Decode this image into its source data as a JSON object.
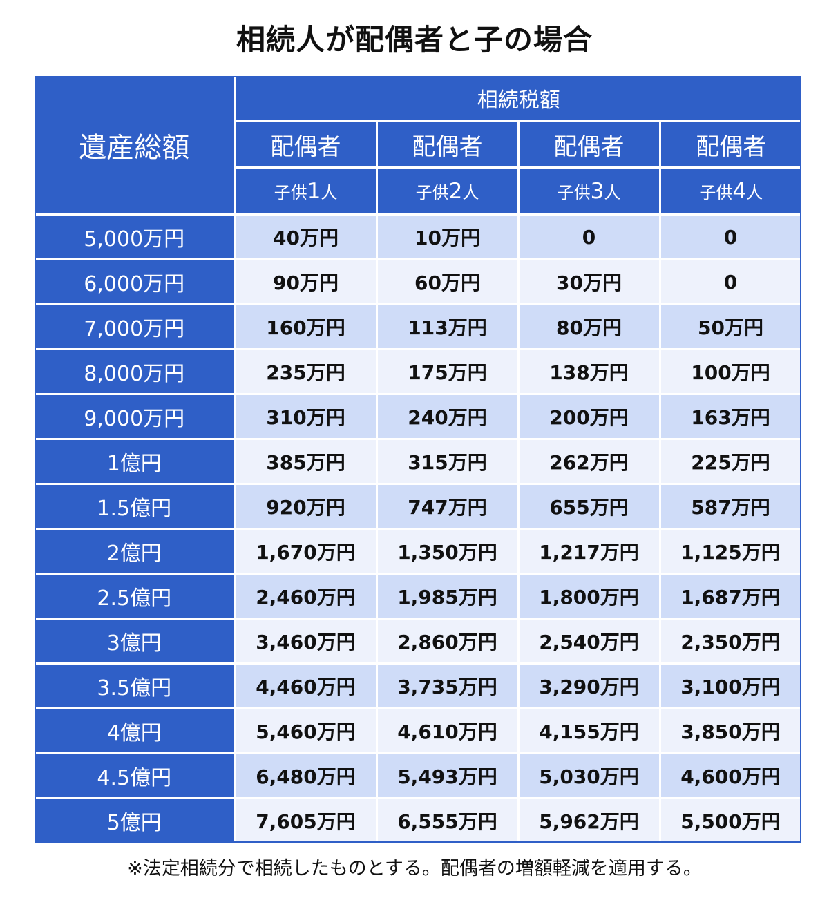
{
  "title": "相続人が配偶者と子の場合",
  "header": {
    "row_header": "遺産総額",
    "group": "相続税額",
    "columns": [
      {
        "spouse": "配偶者",
        "child_prefix": "子供",
        "child_num": "1",
        "child_suffix": "人"
      },
      {
        "spouse": "配偶者",
        "child_prefix": "子供",
        "child_num": "2",
        "child_suffix": "人"
      },
      {
        "spouse": "配偶者",
        "child_prefix": "子供",
        "child_num": "3",
        "child_suffix": "人"
      },
      {
        "spouse": "配偶者",
        "child_prefix": "子供",
        "child_num": "4",
        "child_suffix": "人"
      }
    ]
  },
  "rows": [
    {
      "estate": "5,000万円",
      "values": [
        "40万円",
        "10万円",
        "0",
        "0"
      ]
    },
    {
      "estate": "6,000万円",
      "values": [
        "90万円",
        "60万円",
        "30万円",
        "0"
      ]
    },
    {
      "estate": "7,000万円",
      "values": [
        "160万円",
        "113万円",
        "80万円",
        "50万円"
      ]
    },
    {
      "estate": "8,000万円",
      "values": [
        "235万円",
        "175万円",
        "138万円",
        "100万円"
      ]
    },
    {
      "estate": "9,000万円",
      "values": [
        "310万円",
        "240万円",
        "200万円",
        "163万円"
      ]
    },
    {
      "estate": "1億円",
      "values": [
        "385万円",
        "315万円",
        "262万円",
        "225万円"
      ]
    },
    {
      "estate": "1.5億円",
      "values": [
        "920万円",
        "747万円",
        "655万円",
        "587万円"
      ]
    },
    {
      "estate": "2億円",
      "values": [
        "1,670万円",
        "1,350万円",
        "1,217万円",
        "1,125万円"
      ]
    },
    {
      "estate": "2.5億円",
      "values": [
        "2,460万円",
        "1,985万円",
        "1,800万円",
        "1,687万円"
      ]
    },
    {
      "estate": "3億円",
      "values": [
        "3,460万円",
        "2,860万円",
        "2,540万円",
        "2,350万円"
      ]
    },
    {
      "estate": "3.5億円",
      "values": [
        "4,460万円",
        "3,735万円",
        "3,290万円",
        "3,100万円"
      ]
    },
    {
      "estate": "4億円",
      "values": [
        "5,460万円",
        "4,610万円",
        "4,155万円",
        "3,850万円"
      ]
    },
    {
      "estate": "4.5億円",
      "values": [
        "6,480万円",
        "5,493万円",
        "5,030万円",
        "4,600万円"
      ]
    },
    {
      "estate": "5億円",
      "values": [
        "7,605万円",
        "6,555万円",
        "5,962万円",
        "5,500万円"
      ]
    }
  ],
  "note": "※法定相続分で相続したものとする。配偶者の増額軽減を適用する。",
  "colors": {
    "header_blue": "#2f5fc7",
    "row_odd": "#cfdcf8",
    "row_even": "#eef2fc"
  }
}
